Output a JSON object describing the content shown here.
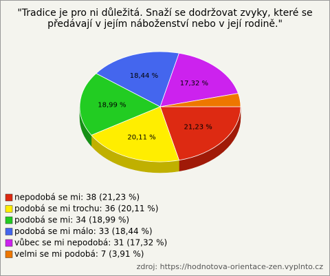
{
  "chart_data": {
    "type": "pie",
    "title_lines": [
      "\"Tradice je pro ni důležitá. Snaží se dodržovat zvyky, které se",
      "předávají v jejím náboženství nebo v její rodině.\""
    ],
    "categories": [
      "nepodobá se mi: 38 (21,23 %)",
      "podobá se mi trochu: 36 (20,11 %)",
      "podobá se mi: 34 (18,99 %)",
      "podobá se mi málo: 33 (18,44 %)",
      "vůbec se mi nepodobá: 31 (17,32 %)",
      "velmi se mi podobá: 7 (3,91 %)"
    ],
    "values": [
      21.23,
      20.11,
      18.99,
      18.44,
      17.32,
      3.91
    ],
    "value_labels": [
      "21,23 %",
      "20,11 %",
      "18,99 %",
      "18,44 %",
      "17,32 %",
      ""
    ],
    "colors": [
      "#dd2a12",
      "#ffee00",
      "#22cc22",
      "#4466ee",
      "#cc22ee",
      "#ee7700"
    ],
    "side_colors": [
      "#a01a08",
      "#c0b000",
      "#169016",
      "#2e48b0",
      "#9018a8",
      "#b05800"
    ],
    "source": "zdroj: https://hodnotova-orientace-zen.vyplnto.cz"
  }
}
